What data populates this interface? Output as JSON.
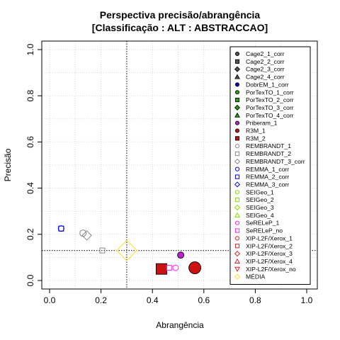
{
  "chart_data": {
    "type": "scatter",
    "title": "Perspectiva precisão/abrangência",
    "subtitle": "[Classificação : ALT : ABSTRACCAO]",
    "xlabel": "Abrangência",
    "ylabel": "Precisão",
    "xlim": [
      0,
      1
    ],
    "ylim": [
      0,
      1
    ],
    "x_ticks": [
      "0.0",
      "0.2",
      "0.4",
      "0.6",
      "0.8",
      "1.0"
    ],
    "y_ticks": [
      "0.0",
      "0.2",
      "0.4",
      "0.6",
      "0.8",
      "1.0"
    ],
    "grid": true,
    "legend_position": "top-right",
    "reference_lines": {
      "x": 0.3,
      "y": 0.13
    },
    "series": [
      {
        "name": "Cage2_1_corr",
        "shape": "circle",
        "filled": true,
        "color": "#555555",
        "points": []
      },
      {
        "name": "Cage2_2_corr",
        "shape": "square",
        "filled": true,
        "color": "#555555",
        "points": []
      },
      {
        "name": "Cage2_3_corr",
        "shape": "diamond",
        "filled": true,
        "color": "#555555",
        "points": []
      },
      {
        "name": "Cage2_4_corr",
        "shape": "triangle",
        "filled": true,
        "color": "#555555",
        "points": []
      },
      {
        "name": "DobrEM_1_corr",
        "shape": "circle",
        "filled": true,
        "color": "#0000cc",
        "points": []
      },
      {
        "name": "PorTexTO_1_corr",
        "shape": "circle",
        "filled": true,
        "color": "#22aa00",
        "points": []
      },
      {
        "name": "PorTexTO_2_corr",
        "shape": "square",
        "filled": true,
        "color": "#22aa00",
        "points": []
      },
      {
        "name": "PorTexTO_3_corr",
        "shape": "diamond",
        "filled": true,
        "color": "#22aa00",
        "points": []
      },
      {
        "name": "PorTexTO_4_corr",
        "shape": "triangle",
        "filled": true,
        "color": "#22aa00",
        "points": []
      },
      {
        "name": "Priberam_1",
        "shape": "circle",
        "filled": true,
        "color": "#bb22cc",
        "points": [
          {
            "x": 0.51,
            "y": 0.11,
            "size": 4.5
          }
        ]
      },
      {
        "name": "R3M_1",
        "shape": "circle",
        "filled": true,
        "color": "#cc1111",
        "points": [
          {
            "x": 0.565,
            "y": 0.055,
            "size": 8.5
          }
        ]
      },
      {
        "name": "R3M_2",
        "shape": "square",
        "filled": true,
        "color": "#cc1111",
        "points": [
          {
            "x": 0.435,
            "y": 0.05,
            "size": 7.5
          }
        ]
      },
      {
        "name": "REMBRANDT_1",
        "shape": "circle",
        "filled": false,
        "color": "#888888",
        "points": [
          {
            "x": 0.13,
            "y": 0.205,
            "size": 4.5
          }
        ]
      },
      {
        "name": "REMBRANDT_2",
        "shape": "square",
        "filled": false,
        "color": "#888888",
        "points": [
          {
            "x": 0.205,
            "y": 0.13,
            "size": 3.5
          }
        ]
      },
      {
        "name": "REMBRANDT_3_corr",
        "shape": "diamond",
        "filled": false,
        "color": "#888888",
        "points": [
          {
            "x": 0.145,
            "y": 0.195,
            "size": 5
          }
        ]
      },
      {
        "name": "REMMA_1_corr",
        "shape": "circle",
        "filled": false,
        "color": "#0000ff",
        "points": [
          {
            "x": 0.045,
            "y": 0.225,
            "size": 4
          }
        ]
      },
      {
        "name": "REMMA_2_corr",
        "shape": "square",
        "filled": false,
        "color": "#0000ff",
        "points": [
          {
            "x": 0.045,
            "y": 0.225,
            "size": 3.5
          }
        ]
      },
      {
        "name": "REMMA_3_corr",
        "shape": "diamond",
        "filled": false,
        "color": "#0000ff",
        "points": []
      },
      {
        "name": "SEIGeo_1",
        "shape": "circle",
        "filled": false,
        "color": "#88dd00",
        "points": []
      },
      {
        "name": "SEIGeo_2",
        "shape": "square",
        "filled": false,
        "color": "#88dd00",
        "points": []
      },
      {
        "name": "SEIGeo_3",
        "shape": "diamond",
        "filled": false,
        "color": "#88dd00",
        "points": []
      },
      {
        "name": "SEIGeo_4",
        "shape": "triangle",
        "filled": false,
        "color": "#88dd00",
        "points": []
      },
      {
        "name": "SeRELeP_1",
        "shape": "circle",
        "filled": false,
        "color": "#ff22ff",
        "points": [
          {
            "x": 0.49,
            "y": 0.055,
            "size": 4
          }
        ]
      },
      {
        "name": "SeRELeP_no",
        "shape": "square",
        "filled": false,
        "color": "#ff22ff",
        "points": [
          {
            "x": 0.465,
            "y": 0.055,
            "size": 3.5
          }
        ]
      },
      {
        "name": "XIP-L2F/Xerox_1",
        "shape": "circle",
        "filled": false,
        "color": "#dd2222",
        "points": []
      },
      {
        "name": "XIP-L2F/Xerox_2",
        "shape": "square",
        "filled": false,
        "color": "#dd2222",
        "points": []
      },
      {
        "name": "XIP-L2F/Xerox_3",
        "shape": "diamond",
        "filled": false,
        "color": "#dd2222",
        "points": []
      },
      {
        "name": "XIP-L2F/Xerox_4",
        "shape": "triangle",
        "filled": false,
        "color": "#dd2222",
        "points": []
      },
      {
        "name": "XIP-L2F/Xerox_no",
        "shape": "triangle-down",
        "filled": false,
        "color": "#dd2222",
        "points": []
      },
      {
        "name": "MÉDIA",
        "shape": "diamond",
        "filled": false,
        "color": "#ffdd33",
        "points": [
          {
            "x": 0.3,
            "y": 0.13,
            "size": 11
          }
        ]
      }
    ]
  }
}
